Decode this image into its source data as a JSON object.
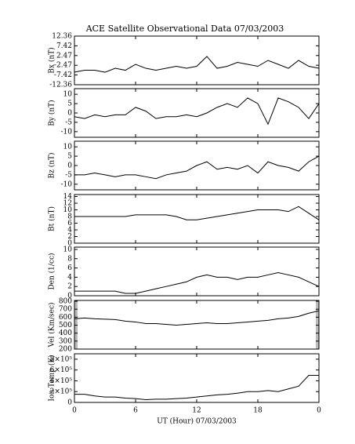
{
  "title": "ACE Satellite Observational Data   07/03/2003",
  "xlabel": "UT (Hour)   07/03/2003",
  "chart_data": [
    {
      "type": "line",
      "ylabel": "Bx (nT)",
      "color": "#000000",
      "xlim": [
        0,
        24
      ],
      "x": [
        0,
        1,
        2,
        3,
        4,
        5,
        6,
        7,
        8,
        9,
        10,
        11,
        12,
        13,
        14,
        15,
        16,
        17,
        18,
        19,
        20,
        21,
        22,
        23,
        24
      ],
      "values": [
        -6,
        -5,
        -5,
        -6,
        -4,
        -5,
        -2,
        -4,
        -5,
        -4,
        -3,
        -4,
        -3,
        2,
        -4,
        -3,
        -1,
        -2,
        -3,
        0,
        -2,
        -4,
        0,
        -3,
        -4
      ],
      "ylim": [
        -12.36,
        12.36
      ],
      "yticks": [
        -12.36,
        -7.42,
        -2.47,
        2.47,
        7.42,
        12.36
      ]
    },
    {
      "type": "line",
      "ylabel": "By (nT)",
      "color": "#000000",
      "xlim": [
        0,
        24
      ],
      "x": [
        0,
        1,
        2,
        3,
        4,
        5,
        6,
        7,
        8,
        9,
        10,
        11,
        12,
        13,
        14,
        15,
        16,
        17,
        18,
        19,
        20,
        21,
        22,
        23,
        24
      ],
      "values": [
        -2,
        -3,
        -1,
        -2,
        -1,
        -1,
        3,
        1,
        -3,
        -2,
        -2,
        -1,
        -2,
        0,
        3,
        5,
        3,
        8,
        5,
        -6,
        8,
        6,
        3,
        -3,
        5
      ],
      "ylim": [
        -13,
        13
      ],
      "yticks": [
        -10,
        -5,
        0,
        5,
        10
      ]
    },
    {
      "type": "line",
      "ylabel": "Bz (nT)",
      "color": "#000000",
      "xlim": [
        0,
        24
      ],
      "x": [
        0,
        1,
        2,
        3,
        4,
        5,
        6,
        7,
        8,
        9,
        10,
        11,
        12,
        13,
        14,
        15,
        16,
        17,
        18,
        19,
        20,
        21,
        22,
        23,
        24
      ],
      "values": [
        -5,
        -5,
        -4,
        -5,
        -6,
        -5,
        -5,
        -6,
        -7,
        -5,
        -4,
        -3,
        0,
        2,
        -2,
        -1,
        -2,
        0,
        -4,
        2,
        0,
        -1,
        -3,
        2,
        5
      ],
      "ylim": [
        -13,
        13
      ],
      "yticks": [
        -10,
        -5,
        0,
        5,
        10
      ]
    },
    {
      "type": "line",
      "ylabel": "Bt (nT)",
      "color": "#000000",
      "xlim": [
        0,
        24
      ],
      "x": [
        0,
        1,
        2,
        3,
        4,
        5,
        6,
        7,
        8,
        9,
        10,
        11,
        12,
        13,
        14,
        15,
        16,
        17,
        18,
        19,
        20,
        21,
        22,
        23,
        24
      ],
      "values": [
        8,
        8,
        8,
        8,
        8,
        8,
        8.5,
        8.5,
        8.5,
        8.5,
        8,
        7,
        7,
        7.5,
        8,
        8.5,
        9,
        9.5,
        10,
        10,
        10,
        9.5,
        11,
        9,
        7
      ],
      "ylim": [
        0,
        14.6
      ],
      "yticks": [
        0,
        2,
        4,
        6,
        8,
        10,
        12,
        14
      ]
    },
    {
      "type": "line",
      "ylabel": "Den (1/cc)",
      "color": "#000000",
      "xlim": [
        0,
        24
      ],
      "x": [
        0,
        1,
        2,
        3,
        4,
        5,
        6,
        7,
        8,
        9,
        10,
        11,
        12,
        13,
        14,
        15,
        16,
        17,
        18,
        19,
        20,
        21,
        22,
        23,
        24
      ],
      "values": [
        1,
        1,
        1,
        1,
        1,
        0.5,
        0.5,
        1,
        1.5,
        2,
        2.5,
        3,
        4,
        4.5,
        4,
        4,
        3.5,
        4,
        4,
        4.5,
        5,
        4.5,
        4,
        3,
        2
      ],
      "ylim": [
        0,
        10.5
      ],
      "yticks": [
        0,
        2,
        4,
        6,
        8,
        10
      ]
    },
    {
      "type": "line",
      "ylabel": "Vel (Km/sec)",
      "color": "#000000",
      "xlim": [
        0,
        24
      ],
      "x": [
        0,
        1,
        2,
        3,
        4,
        5,
        6,
        7,
        8,
        9,
        10,
        11,
        12,
        13,
        14,
        15,
        16,
        17,
        18,
        19,
        20,
        21,
        22,
        23,
        24
      ],
      "values": [
        580,
        590,
        580,
        575,
        570,
        550,
        540,
        520,
        520,
        510,
        500,
        510,
        520,
        530,
        520,
        520,
        530,
        540,
        550,
        560,
        580,
        590,
        610,
        650,
        680
      ],
      "ylim": [
        200,
        810
      ],
      "yticks": [
        200,
        300,
        400,
        500,
        600,
        700,
        800
      ]
    },
    {
      "type": "line",
      "ylabel": "Ion Temp (K)",
      "color": "#000000",
      "xlim": [
        0,
        24
      ],
      "x": [
        0,
        1,
        2,
        3,
        4,
        5,
        6,
        7,
        8,
        9,
        10,
        11,
        12,
        13,
        14,
        15,
        16,
        17,
        18,
        19,
        20,
        21,
        22,
        23,
        24
      ],
      "values": [
        150000,
        150000,
        120000,
        100000,
        100000,
        80000,
        70000,
        50000,
        60000,
        60000,
        70000,
        80000,
        100000,
        120000,
        140000,
        150000,
        170000,
        200000,
        200000,
        220000,
        200000,
        250000,
        300000,
        500000,
        500000
      ],
      "ylim": [
        0,
        900000
      ],
      "yticks": [
        0,
        {
          "value": 200000,
          "label": "2×10⁵"
        },
        {
          "value": 400000,
          "label": "4×10⁵"
        },
        {
          "value": 600000,
          "label": "6×10⁵"
        },
        {
          "value": 800000,
          "label": "8×10⁵"
        }
      ],
      "xticks": [
        0,
        6,
        12,
        18,
        {
          "value": 24,
          "label": "0"
        }
      ]
    }
  ]
}
